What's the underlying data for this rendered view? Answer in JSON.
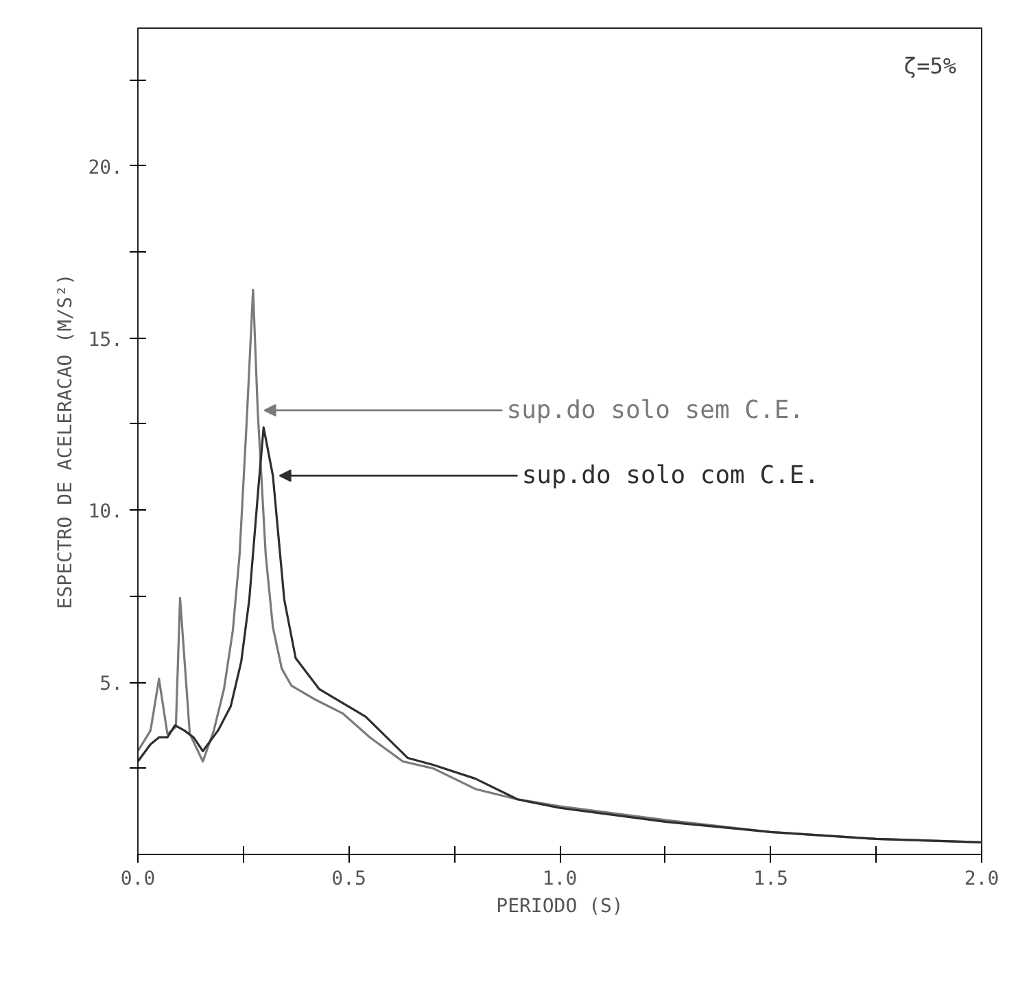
{
  "chart_data": {
    "type": "line",
    "xlabel": "PERIODO (S)",
    "ylabel": "ESPECTRO DE ACELERACAO (M/S²)",
    "annotations": [
      "ζ=5%"
    ],
    "xlim": [
      0,
      2.0
    ],
    "ylim": [
      0,
      24
    ],
    "xticks": [
      {
        "value": 0,
        "label": "0.0"
      },
      {
        "value": 0.25,
        "label": null
      },
      {
        "value": 0.5,
        "label": "0.5"
      },
      {
        "value": 0.75,
        "label": null
      },
      {
        "value": 1.0,
        "label": "1.0"
      },
      {
        "value": 1.25,
        "label": null
      },
      {
        "value": 1.5,
        "label": "1.5"
      },
      {
        "value": 1.75,
        "label": null
      },
      {
        "value": 2.0,
        "label": "2.0"
      }
    ],
    "yticks": [
      {
        "value": 2.5,
        "label": null
      },
      {
        "value": 5,
        "label": "5."
      },
      {
        "value": 7.5,
        "label": null
      },
      {
        "value": 10,
        "label": "10."
      },
      {
        "value": 12.5,
        "label": null
      },
      {
        "value": 15,
        "label": "15."
      },
      {
        "value": 17.5,
        "label": null
      },
      {
        "value": 20,
        "label": "20."
      },
      {
        "value": 22.5,
        "label": null
      }
    ],
    "grid": false,
    "legend": false,
    "marker": "none",
    "line_style": "solid",
    "series": [
      {
        "name": "sup.do solo sem C.E.",
        "color": "#7a7a7a",
        "x": [
          0,
          0.03,
          0.05,
          0.07,
          0.09,
          0.1,
          0.123,
          0.154,
          0.18,
          0.204,
          0.225,
          0.241,
          0.258,
          0.273,
          0.284,
          0.303,
          0.32,
          0.341,
          0.364,
          0.42,
          0.485,
          0.55,
          0.628,
          0.7,
          0.8,
          0.9,
          1.0,
          1.25,
          1.5,
          1.75,
          2.0
        ],
        "values": [
          3.0,
          3.6,
          5.1,
          3.5,
          3.7,
          7.45,
          3.5,
          2.7,
          3.6,
          4.8,
          6.5,
          8.7,
          12.6,
          16.4,
          12.9,
          8.7,
          6.6,
          5.4,
          4.9,
          4.5,
          4.1,
          3.4,
          2.7,
          2.5,
          1.9,
          1.6,
          1.4,
          1.0,
          0.65,
          0.45,
          0.35
        ]
      },
      {
        "name": "sup.do solo com C.E.",
        "color": "#2e2e2e",
        "x": [
          0,
          0.03,
          0.05,
          0.07,
          0.088,
          0.11,
          0.132,
          0.154,
          0.19,
          0.22,
          0.245,
          0.264,
          0.286,
          0.298,
          0.32,
          0.347,
          0.374,
          0.43,
          0.54,
          0.64,
          0.7,
          0.8,
          0.9,
          1.0,
          1.25,
          1.5,
          1.75,
          2.0
        ],
        "values": [
          2.7,
          3.2,
          3.4,
          3.4,
          3.75,
          3.6,
          3.4,
          3.0,
          3.6,
          4.3,
          5.6,
          7.4,
          10.7,
          12.4,
          11.0,
          7.4,
          5.7,
          4.8,
          4.0,
          2.8,
          2.6,
          2.2,
          1.6,
          1.35,
          0.95,
          0.65,
          0.45,
          0.35
        ]
      }
    ]
  }
}
